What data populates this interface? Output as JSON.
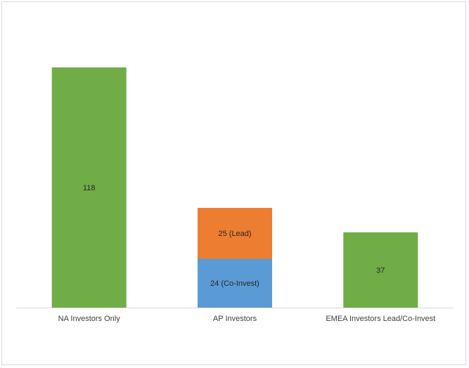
{
  "chart_data": {
    "type": "bar",
    "stacked": true,
    "categories": [
      "NA Investors Only",
      "AP Investors",
      "EMEA Investors Lead/Co-Invest"
    ],
    "bars": [
      {
        "category": "NA Investors Only",
        "segments": [
          {
            "value": 118,
            "label": "118",
            "color": "#70ad47"
          }
        ]
      },
      {
        "category": "AP Investors",
        "segments": [
          {
            "value": 24,
            "label": "24 (Co-Invest)",
            "color": "#5b9bd5"
          },
          {
            "value": 25,
            "label": "25 (Lead)",
            "color": "#ed7d31"
          }
        ]
      },
      {
        "category": "EMEA Investors Lead/Co-Invest",
        "segments": [
          {
            "value": 37,
            "label": "37",
            "color": "#70ad47"
          }
        ]
      }
    ],
    "ylim": [
      0,
      118
    ],
    "grid": false,
    "legend": "none",
    "colors": {
      "axis": "#d9d9d9",
      "label_text": "#404040",
      "data_label_text": "#262626"
    }
  }
}
